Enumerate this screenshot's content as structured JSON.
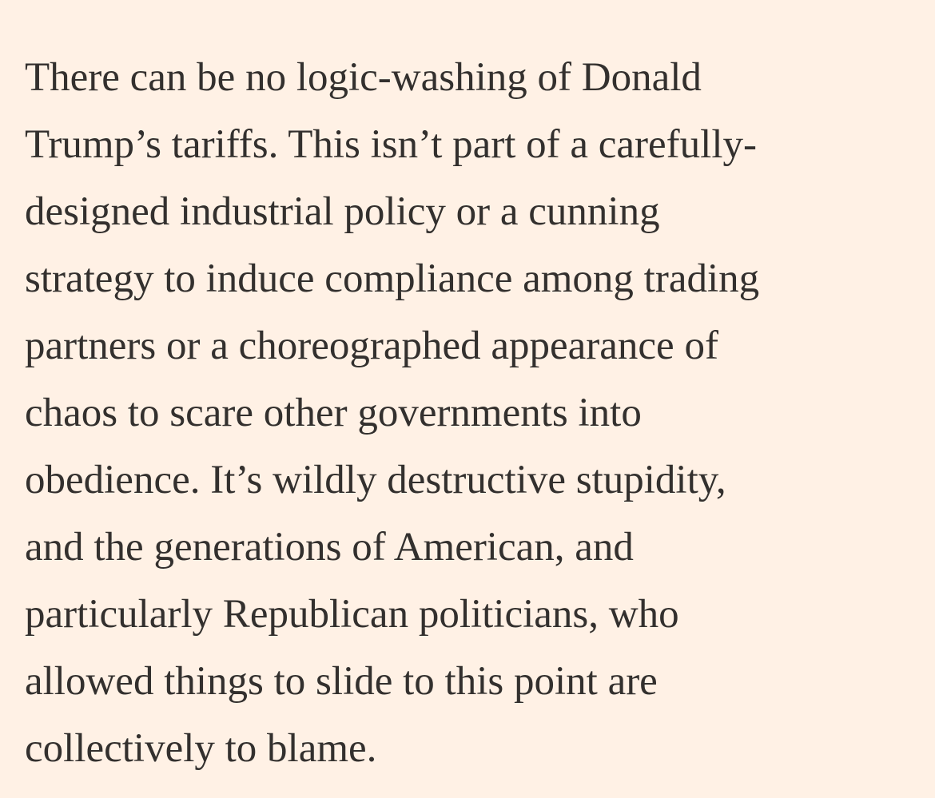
{
  "article": {
    "lines": [
      "There can be no logic-washing of Donald",
      "Trump’s tariffs. This isn’t part of a carefully-",
      "designed industrial policy or a cunning",
      "strategy to induce compliance among trading",
      "partners or a choreographed appearance of",
      "chaos to scare other governments into",
      "obedience. It’s wildly destructive stupidity,",
      "and the generations of American, and",
      "particularly Republican politicians, who",
      "allowed things to slide to this point are",
      "collectively to blame."
    ]
  },
  "colors": {
    "background": "#fff1e5",
    "text": "#33302e"
  }
}
